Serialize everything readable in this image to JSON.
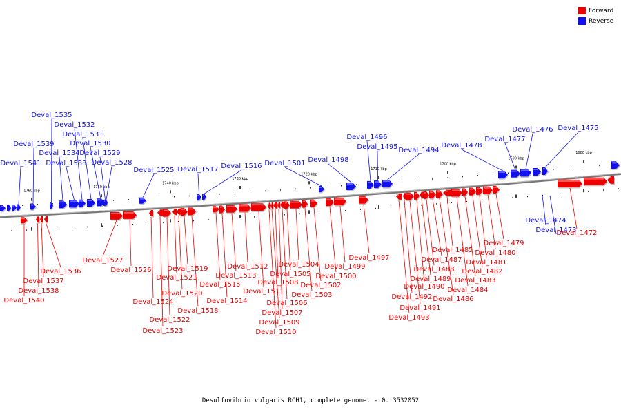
{
  "legend": {
    "forward": {
      "label": "Forward",
      "color": "#ee0000"
    },
    "reverse": {
      "label": "Reverse",
      "color": "#1111ee"
    }
  },
  "footer": {
    "caption": "Desulfovibrio vulgaris RCH1, complete genome. - 0..3532052"
  },
  "scale_ticks": [
    {
      "label": "1760 kbp",
      "kbp": 1760
    },
    {
      "label": "1750 kbp",
      "kbp": 1750
    },
    {
      "label": "1740 kbp",
      "kbp": 1740
    },
    {
      "label": "1730 kbp",
      "kbp": 1730
    },
    {
      "label": "1720 kbp",
      "kbp": 1720
    },
    {
      "label": "1710 kbp",
      "kbp": 1710
    },
    {
      "label": "1700 kbp",
      "kbp": 1700
    },
    {
      "label": "1690 kbp",
      "kbp": 1690
    },
    {
      "label": "1680 kbp",
      "kbp": 1680
    }
  ],
  "reverse_genes": [
    "Deval_1541",
    "Deval_1539",
    "Deval_1535",
    "Deval_1534",
    "Deval_1533",
    "Deval_1532",
    "Deval_1531",
    "Deval_1530",
    "Deval_1529",
    "Deval_1528",
    "Deval_1525",
    "Deval_1517",
    "Deval_1516",
    "Deval_1501",
    "Deval_1498",
    "Deval_1496",
    "Deval_1495",
    "Deval_1494",
    "Deval_1478",
    "Deval_1477",
    "Deval_1476",
    "Deval_1475",
    "Deval_1474",
    "Deval_1473"
  ],
  "forward_genes": [
    "Deval_1540",
    "Deval_1538",
    "Deval_1537",
    "Deval_1536",
    "Deval_1527",
    "Deval_1526",
    "Deval_1524",
    "Deval_1523",
    "Deval_1522",
    "Deval_1521",
    "Deval_1520",
    "Deval_1519",
    "Deval_1518",
    "Deval_1515",
    "Deval_1514",
    "Deval_1513",
    "Deval_1512",
    "Deval_1511",
    "Deval_1510",
    "Deval_1509",
    "Deval_1508",
    "Deval_1507",
    "Deval_1506",
    "Deval_1505",
    "Deval_1504",
    "Deval_1503",
    "Deval_1502",
    "Deval_1500",
    "Deval_1499",
    "Deval_1497",
    "Deval_1493",
    "Deval_1492",
    "Deval_1491",
    "Deval_1490",
    "Deval_1489",
    "Deval_1488",
    "Deval_1487",
    "Deval_1486",
    "Deval_1485",
    "Deval_1484",
    "Deval_1483",
    "Deval_1482",
    "Deval_1481",
    "Deval_1480",
    "Deval_1479",
    "Deval_1472"
  ]
}
